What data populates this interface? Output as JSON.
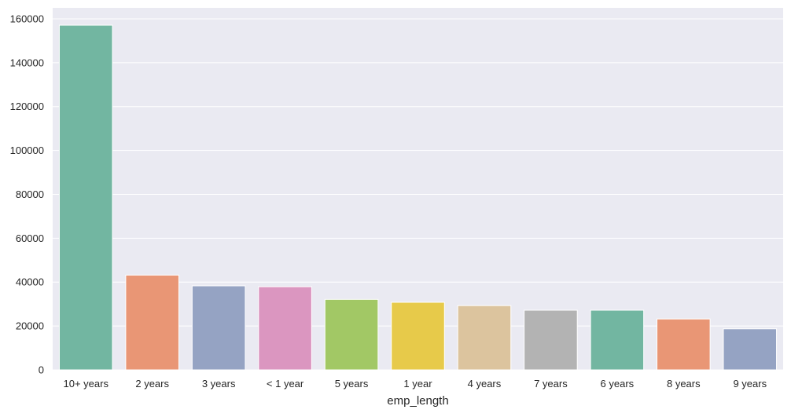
{
  "chart_data": {
    "type": "bar",
    "title": "",
    "xlabel": "emp_length",
    "ylabel": "",
    "categories": [
      "10+ years",
      "2 years",
      "3 years",
      "< 1 year",
      "5 years",
      "1 year",
      "4 years",
      "7 years",
      "6 years",
      "8 years",
      "9 years"
    ],
    "values": [
      157100,
      43200,
      38300,
      37900,
      32100,
      30800,
      29300,
      27200,
      27200,
      23200,
      18700
    ],
    "colors": [
      "#72b6a1",
      "#e99675",
      "#95a3c3",
      "#db96c0",
      "#a2c865",
      "#e7ca4a",
      "#dcc49e",
      "#b3b3b3",
      "#72b6a1",
      "#e99675",
      "#95a3c3"
    ],
    "ylim": [
      0,
      165000
    ],
    "yticks": [
      0,
      20000,
      40000,
      60000,
      80000,
      100000,
      120000,
      140000,
      160000
    ],
    "grid": true,
    "background": "#eaeaf2",
    "grid_color": "#ffffff"
  }
}
